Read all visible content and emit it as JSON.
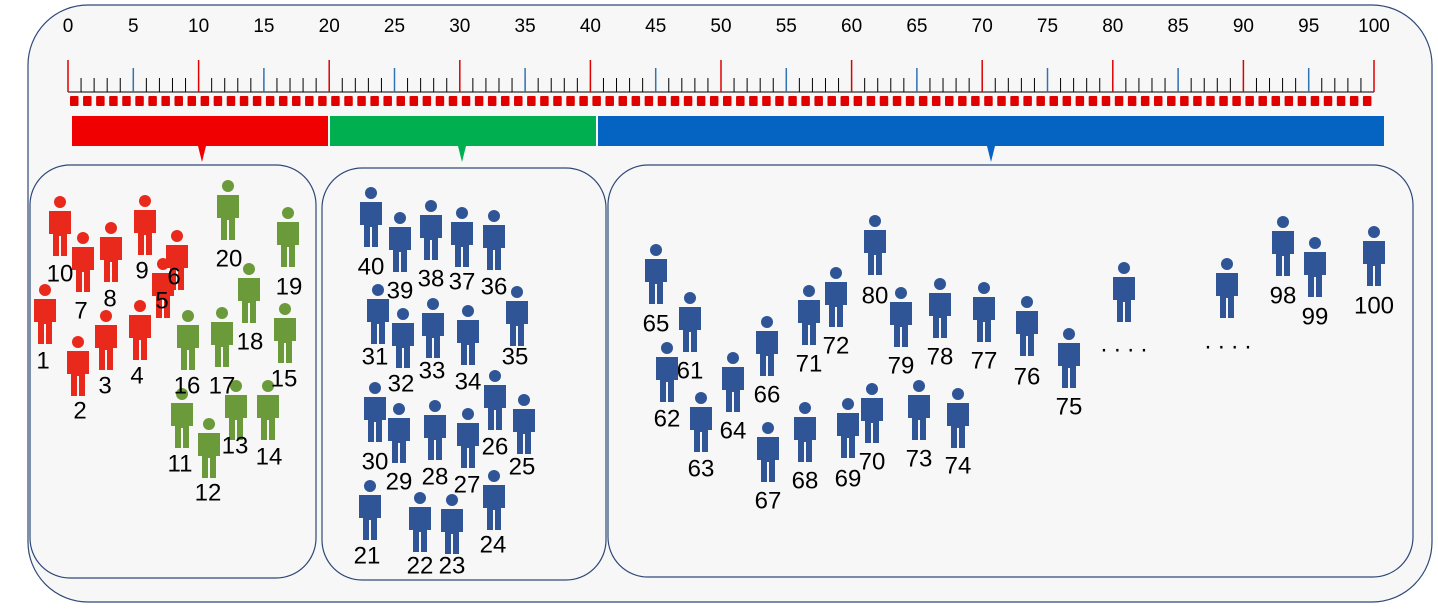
{
  "ruler": {
    "ticks": [
      0,
      5,
      10,
      15,
      20,
      25,
      30,
      35,
      40,
      45,
      50,
      55,
      60,
      65,
      70,
      75,
      80,
      85,
      90,
      95,
      100
    ]
  },
  "panels": [
    {
      "people": [
        "1",
        "2",
        "3",
        "4",
        "5",
        "6",
        "7",
        "8",
        "9",
        "10",
        "11",
        "12",
        "13",
        "14",
        "15",
        "16",
        "17",
        "18",
        "19",
        "20"
      ]
    },
    {
      "people": [
        "21",
        "22",
        "23",
        "24",
        "25",
        "26",
        "27",
        "28",
        "29",
        "30",
        "31",
        "32",
        "33",
        "34",
        "35",
        "36",
        "37",
        "38",
        "39",
        "40"
      ]
    },
    {
      "people": [
        "61",
        "62",
        "63",
        "64",
        "65",
        "66",
        "67",
        "68",
        "69",
        "70",
        "71",
        "72",
        "73",
        "74",
        "75",
        "76",
        "77",
        "78",
        "79",
        "80",
        "98",
        "99",
        "100"
      ],
      "ellipses": [
        ". . . .",
        ". . . ."
      ]
    }
  ]
}
